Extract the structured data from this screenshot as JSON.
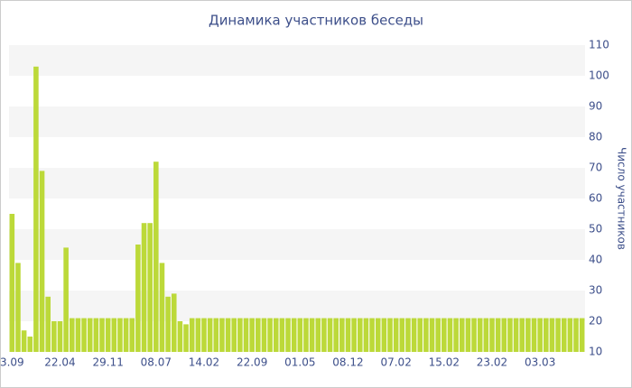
{
  "chart_data": {
    "type": "bar",
    "title": "Динамика участников беседы",
    "y_label": "Число участников",
    "categories": [
      "3.09",
      null,
      null,
      null,
      null,
      null,
      null,
      null,
      "22.04",
      null,
      null,
      null,
      null,
      null,
      null,
      null,
      "29.11",
      null,
      null,
      null,
      null,
      null,
      null,
      null,
      "08.07",
      null,
      null,
      null,
      null,
      null,
      null,
      null,
      "14.02",
      null,
      null,
      null,
      null,
      null,
      null,
      null,
      "22.09",
      null,
      null,
      null,
      null,
      null,
      null,
      null,
      "01.05",
      null,
      null,
      null,
      null,
      null,
      null,
      null,
      "08.12",
      null,
      null,
      null,
      null,
      null,
      null,
      null,
      "07.02",
      null,
      null,
      null,
      null,
      null,
      null,
      null,
      "15.02",
      null,
      null,
      null,
      null,
      null,
      null,
      null,
      "23.02",
      null,
      null,
      null,
      null,
      null,
      null,
      null,
      "03.03",
      null,
      null,
      null,
      null,
      null,
      null,
      null
    ],
    "values": [
      55,
      39,
      17,
      15,
      103,
      69,
      28,
      20,
      20,
      44,
      21,
      21,
      21,
      21,
      21,
      21,
      21,
      21,
      21,
      21,
      21,
      45,
      52,
      52,
      72,
      39,
      28,
      29,
      20,
      19,
      21,
      21,
      21,
      21,
      21,
      21,
      21,
      21,
      21,
      21,
      21,
      21,
      21,
      21,
      21,
      21,
      21,
      21,
      21,
      21,
      21,
      21,
      21,
      21,
      21,
      21,
      21,
      21,
      21,
      21,
      21,
      21,
      21,
      21,
      21,
      21,
      21,
      21,
      21,
      21,
      21,
      21,
      21,
      21,
      21,
      21,
      21,
      21,
      21,
      21,
      21,
      21,
      21,
      21,
      21,
      21,
      21,
      21,
      21,
      21,
      21,
      21,
      21,
      21,
      21,
      21
    ],
    "color": "#bcd939",
    "ylim": [
      10,
      110
    ],
    "yticks": [
      10,
      20,
      30,
      40,
      50,
      60,
      70,
      80,
      90,
      100,
      110
    ],
    "grid": true
  }
}
